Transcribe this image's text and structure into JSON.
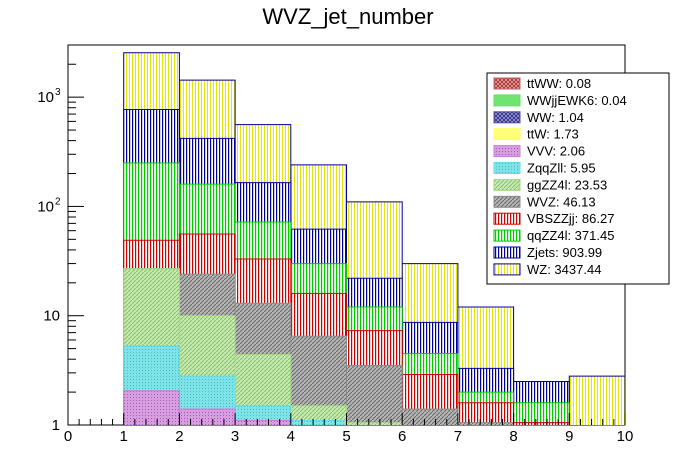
{
  "chart_data": {
    "type": "bar",
    "stacked": true,
    "histogram": true,
    "title": "WVZ_jet_number",
    "xlabel": "",
    "ylabel": "",
    "xlim": [
      0,
      10
    ],
    "ylim": [
      1,
      3000
    ],
    "yscale": "log",
    "bin_edges": [
      0,
      1,
      2,
      3,
      4,
      5,
      6,
      7,
      8,
      9,
      10
    ],
    "x_ticks": [
      "0",
      "1",
      "2",
      "3",
      "4",
      "5",
      "6",
      "7",
      "8",
      "9",
      "10"
    ],
    "y_ticks": [
      {
        "value": 1,
        "label": "1"
      },
      {
        "value": 10,
        "label": "10"
      },
      {
        "value": 100,
        "label": "10",
        "exp": "2"
      },
      {
        "value": 1000,
        "label": "10",
        "exp": "3"
      }
    ],
    "legend_position": "top-right",
    "cumulative": [
      {
        "name": "VVV",
        "color": "#c87fd6",
        "values": [
          0,
          2.06,
          1.4,
          1.1,
          0,
          0,
          0,
          0,
          0,
          0
        ]
      },
      {
        "name": "ZqqZll",
        "color": "#66dbe0",
        "values": [
          0,
          5.3,
          2.8,
          1.5,
          1.1,
          0,
          0,
          0,
          0,
          0
        ]
      },
      {
        "name": "ggZZ4l",
        "color": "#a6d884",
        "values": [
          0,
          27,
          10,
          4.4,
          1.5,
          1.05,
          0,
          0,
          0,
          0
        ]
      },
      {
        "name": "WVZ",
        "color": "#8b8b8b",
        "values": [
          0,
          27,
          24,
          13,
          6.5,
          3.5,
          1.4,
          1.05,
          0,
          0
        ]
      },
      {
        "name": "VBSZZjj",
        "color": "#cc0000",
        "values": [
          0,
          49,
          56,
          33,
          16,
          7.3,
          2.9,
          1.6,
          1.05,
          0
        ]
      },
      {
        "name": "qqZZ4l",
        "color": "#00cc00",
        "values": [
          0,
          250,
          160,
          72,
          30,
          12,
          4.5,
          2,
          1.6,
          0
        ]
      },
      {
        "name": "Zjets",
        "color": "#000099",
        "values": [
          0,
          770,
          420,
          165,
          62,
          22,
          8.7,
          3.3,
          2.5,
          0
        ]
      },
      {
        "name": "WZ",
        "color": "#ffff66",
        "values": [
          0,
          2550,
          1430,
          560,
          240,
          110,
          30,
          12,
          2.5,
          2.8
        ]
      }
    ],
    "legend": [
      {
        "label": "ttWW: 0.08",
        "color": "#c06060",
        "pattern": "cross"
      },
      {
        "label": "WWjjEWK6: 0.04",
        "color": "#66e066",
        "pattern": "solid"
      },
      {
        "label": "WW: 1.04",
        "color": "#4b4b9e",
        "pattern": "cross"
      },
      {
        "label": "ttW: 1.73",
        "color": "#ffff66",
        "pattern": "solid"
      },
      {
        "label": "VVV: 2.06",
        "color": "#c87fd6",
        "pattern": "solid"
      },
      {
        "label": "ZqqZll: 5.95",
        "color": "#66dbe0",
        "pattern": "solid"
      },
      {
        "label": "ggZZ4l: 23.53",
        "color": "#a6d884",
        "pattern": "diag"
      },
      {
        "label": "WVZ: 46.13",
        "color": "#8b8b8b",
        "pattern": "diag"
      },
      {
        "label": "VBSZZjj: 86.27",
        "color": "#cc0000",
        "pattern": "vert"
      },
      {
        "label": "qqZZ4l: 371.45",
        "color": "#00cc00",
        "pattern": "vert"
      },
      {
        "label": "Zjets: 903.99",
        "color": "#000099",
        "pattern": "vert"
      },
      {
        "label": "WZ: 3437.44",
        "color": "#ffff66",
        "pattern": "vert"
      }
    ]
  }
}
